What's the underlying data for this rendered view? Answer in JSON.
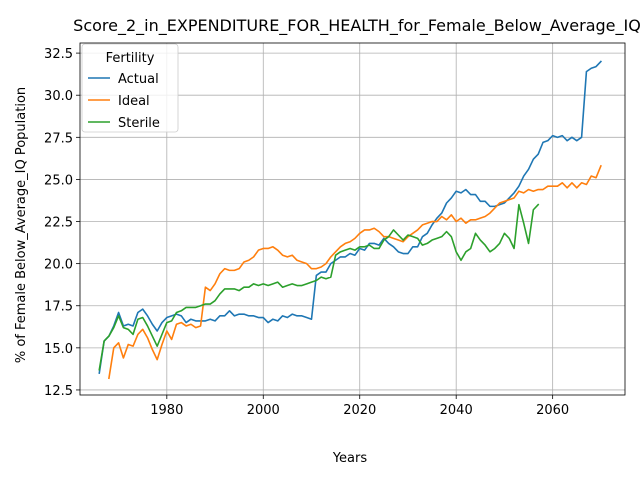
{
  "chart_data": {
    "type": "line",
    "title": "Score_2_in_EXPENDITURE_FOR_HEALTH_for_Female_Below_Average_IQ",
    "xlabel": "Years",
    "ylabel": "% of Female Below_Average_IQ Population",
    "xlim": [
      1962,
      2075
    ],
    "ylim": [
      12.2,
      33.1
    ],
    "xticks": [
      1980,
      2000,
      2020,
      2040,
      2060
    ],
    "yticks": [
      12.5,
      15.0,
      17.5,
      20.0,
      22.5,
      25.0,
      27.5,
      30.0,
      32.5
    ],
    "xtick_labels": [
      "1980",
      "2000",
      "2020",
      "2040",
      "2060"
    ],
    "ytick_labels": [
      "12.5",
      "15.0",
      "17.5",
      "20.0",
      "22.5",
      "25.0",
      "27.5",
      "30.0",
      "32.5"
    ],
    "grid": true,
    "legend": {
      "title": "Fertility",
      "placement": "top-left"
    },
    "series": [
      {
        "name": "Actual",
        "color": "#1f77b4",
        "points": [
          [
            1966,
            13.5
          ],
          [
            1967,
            15.4
          ],
          [
            1968,
            15.7
          ],
          [
            1969,
            16.3
          ],
          [
            1970,
            17.1
          ],
          [
            1971,
            16.3
          ],
          [
            1972,
            16.4
          ],
          [
            1973,
            16.3
          ],
          [
            1974,
            17.1
          ],
          [
            1975,
            17.3
          ],
          [
            1976,
            16.9
          ],
          [
            1977,
            16.4
          ],
          [
            1978,
            16.0
          ],
          [
            1979,
            16.5
          ],
          [
            1980,
            16.8
          ],
          [
            1981,
            16.9
          ],
          [
            1982,
            17.0
          ],
          [
            1983,
            16.9
          ],
          [
            1984,
            16.5
          ],
          [
            1985,
            16.7
          ],
          [
            1986,
            16.6
          ],
          [
            1987,
            16.6
          ],
          [
            1988,
            16.6
          ],
          [
            1989,
            16.7
          ],
          [
            1990,
            16.6
          ],
          [
            1991,
            16.9
          ],
          [
            1992,
            16.9
          ],
          [
            1993,
            17.2
          ],
          [
            1994,
            16.9
          ],
          [
            1995,
            17.0
          ],
          [
            1996,
            17.0
          ],
          [
            1997,
            16.9
          ],
          [
            1998,
            16.9
          ],
          [
            1999,
            16.8
          ],
          [
            2000,
            16.8
          ],
          [
            2001,
            16.5
          ],
          [
            2002,
            16.7
          ],
          [
            2003,
            16.6
          ],
          [
            2004,
            16.9
          ],
          [
            2005,
            16.8
          ],
          [
            2006,
            17.0
          ],
          [
            2007,
            16.9
          ],
          [
            2008,
            16.9
          ],
          [
            2009,
            16.8
          ],
          [
            2010,
            16.7
          ],
          [
            2011,
            19.3
          ],
          [
            2012,
            19.5
          ],
          [
            2013,
            19.5
          ],
          [
            2014,
            20.0
          ],
          [
            2015,
            20.2
          ],
          [
            2016,
            20.4
          ],
          [
            2017,
            20.4
          ],
          [
            2018,
            20.6
          ],
          [
            2019,
            20.5
          ],
          [
            2020,
            20.9
          ],
          [
            2021,
            20.8
          ],
          [
            2022,
            21.2
          ],
          [
            2023,
            21.2
          ],
          [
            2024,
            21.1
          ],
          [
            2025,
            21.5
          ],
          [
            2026,
            21.2
          ],
          [
            2027,
            21.0
          ],
          [
            2028,
            20.7
          ],
          [
            2029,
            20.6
          ],
          [
            2030,
            20.6
          ],
          [
            2031,
            21.0
          ],
          [
            2032,
            21.0
          ],
          [
            2033,
            21.6
          ],
          [
            2034,
            21.8
          ],
          [
            2035,
            22.3
          ],
          [
            2036,
            22.7
          ],
          [
            2037,
            23.0
          ],
          [
            2038,
            23.6
          ],
          [
            2039,
            23.9
          ],
          [
            2040,
            24.3
          ],
          [
            2041,
            24.2
          ],
          [
            2042,
            24.4
          ],
          [
            2043,
            24.1
          ],
          [
            2044,
            24.1
          ],
          [
            2045,
            23.7
          ],
          [
            2046,
            23.7
          ],
          [
            2047,
            23.4
          ],
          [
            2048,
            23.4
          ],
          [
            2049,
            23.5
          ],
          [
            2050,
            23.6
          ],
          [
            2051,
            23.9
          ],
          [
            2052,
            24.2
          ],
          [
            2053,
            24.6
          ],
          [
            2054,
            25.2
          ],
          [
            2055,
            25.6
          ],
          [
            2056,
            26.2
          ],
          [
            2057,
            26.5
          ],
          [
            2058,
            27.2
          ],
          [
            2059,
            27.3
          ],
          [
            2060,
            27.6
          ],
          [
            2061,
            27.5
          ],
          [
            2062,
            27.6
          ],
          [
            2063,
            27.3
          ],
          [
            2064,
            27.5
          ],
          [
            2065,
            27.3
          ],
          [
            2066,
            27.5
          ],
          [
            2067,
            31.4
          ],
          [
            2068,
            31.6
          ],
          [
            2069,
            31.7
          ],
          [
            2070,
            32.0
          ]
        ]
      },
      {
        "name": "Ideal",
        "color": "#ff7f0e",
        "points": [
          [
            1968,
            13.2
          ],
          [
            1969,
            15.0
          ],
          [
            1970,
            15.3
          ],
          [
            1971,
            14.4
          ],
          [
            1972,
            15.2
          ],
          [
            1973,
            15.1
          ],
          [
            1974,
            15.8
          ],
          [
            1975,
            16.1
          ],
          [
            1976,
            15.6
          ],
          [
            1977,
            14.9
          ],
          [
            1978,
            14.3
          ],
          [
            1979,
            15.2
          ],
          [
            1980,
            16.0
          ],
          [
            1981,
            15.5
          ],
          [
            1982,
            16.4
          ],
          [
            1983,
            16.5
          ],
          [
            1984,
            16.3
          ],
          [
            1985,
            16.4
          ],
          [
            1986,
            16.2
          ],
          [
            1987,
            16.3
          ],
          [
            1988,
            18.6
          ],
          [
            1989,
            18.4
          ],
          [
            1990,
            18.8
          ],
          [
            1991,
            19.4
          ],
          [
            1992,
            19.7
          ],
          [
            1993,
            19.6
          ],
          [
            1994,
            19.6
          ],
          [
            1995,
            19.7
          ],
          [
            1996,
            20.1
          ],
          [
            1997,
            20.2
          ],
          [
            1998,
            20.4
          ],
          [
            1999,
            20.8
          ],
          [
            2000,
            20.9
          ],
          [
            2001,
            20.9
          ],
          [
            2002,
            21.0
          ],
          [
            2003,
            20.8
          ],
          [
            2004,
            20.5
          ],
          [
            2005,
            20.4
          ],
          [
            2006,
            20.5
          ],
          [
            2007,
            20.2
          ],
          [
            2008,
            20.1
          ],
          [
            2009,
            20.0
          ],
          [
            2010,
            19.7
          ],
          [
            2011,
            19.7
          ],
          [
            2012,
            19.8
          ],
          [
            2013,
            20.0
          ],
          [
            2014,
            20.4
          ],
          [
            2015,
            20.7
          ],
          [
            2016,
            21.0
          ],
          [
            2017,
            21.2
          ],
          [
            2018,
            21.3
          ],
          [
            2019,
            21.5
          ],
          [
            2020,
            21.8
          ],
          [
            2021,
            22.0
          ],
          [
            2022,
            22.0
          ],
          [
            2023,
            22.1
          ],
          [
            2024,
            21.9
          ],
          [
            2025,
            21.6
          ],
          [
            2026,
            21.6
          ],
          [
            2027,
            21.5
          ],
          [
            2028,
            21.4
          ],
          [
            2029,
            21.3
          ],
          [
            2030,
            21.6
          ],
          [
            2031,
            21.8
          ],
          [
            2032,
            22.0
          ],
          [
            2033,
            22.3
          ],
          [
            2034,
            22.4
          ],
          [
            2035,
            22.5
          ],
          [
            2036,
            22.5
          ],
          [
            2037,
            22.8
          ],
          [
            2038,
            22.6
          ],
          [
            2039,
            22.9
          ],
          [
            2040,
            22.5
          ],
          [
            2041,
            22.7
          ],
          [
            2042,
            22.4
          ],
          [
            2043,
            22.6
          ],
          [
            2044,
            22.6
          ],
          [
            2045,
            22.7
          ],
          [
            2046,
            22.8
          ],
          [
            2047,
            23.0
          ],
          [
            2048,
            23.3
          ],
          [
            2049,
            23.6
          ],
          [
            2050,
            23.7
          ],
          [
            2051,
            23.8
          ],
          [
            2052,
            23.9
          ],
          [
            2053,
            24.3
          ],
          [
            2054,
            24.2
          ],
          [
            2055,
            24.4
          ],
          [
            2056,
            24.3
          ],
          [
            2057,
            24.4
          ],
          [
            2058,
            24.4
          ],
          [
            2059,
            24.6
          ],
          [
            2060,
            24.6
          ],
          [
            2061,
            24.6
          ],
          [
            2062,
            24.8
          ],
          [
            2063,
            24.5
          ],
          [
            2064,
            24.8
          ],
          [
            2065,
            24.5
          ],
          [
            2066,
            24.8
          ],
          [
            2067,
            24.7
          ],
          [
            2068,
            25.2
          ],
          [
            2069,
            25.1
          ],
          [
            2070,
            25.8
          ]
        ]
      },
      {
        "name": "Sterile",
        "color": "#2ca02c",
        "points": [
          [
            1966,
            13.7
          ],
          [
            1967,
            15.4
          ],
          [
            1968,
            15.7
          ],
          [
            1969,
            16.2
          ],
          [
            1970,
            16.9
          ],
          [
            1971,
            16.2
          ],
          [
            1972,
            16.1
          ],
          [
            1973,
            15.8
          ],
          [
            1974,
            16.7
          ],
          [
            1975,
            16.8
          ],
          [
            1976,
            16.3
          ],
          [
            1977,
            15.7
          ],
          [
            1978,
            15.1
          ],
          [
            1979,
            15.8
          ],
          [
            1980,
            16.5
          ],
          [
            1981,
            16.6
          ],
          [
            1982,
            17.1
          ],
          [
            1983,
            17.2
          ],
          [
            1984,
            17.4
          ],
          [
            1985,
            17.4
          ],
          [
            1986,
            17.4
          ],
          [
            1987,
            17.5
          ],
          [
            1988,
            17.6
          ],
          [
            1989,
            17.6
          ],
          [
            1990,
            17.8
          ],
          [
            1991,
            18.2
          ],
          [
            1992,
            18.5
          ],
          [
            1993,
            18.5
          ],
          [
            1994,
            18.5
          ],
          [
            1995,
            18.4
          ],
          [
            1996,
            18.6
          ],
          [
            1997,
            18.6
          ],
          [
            1998,
            18.8
          ],
          [
            1999,
            18.7
          ],
          [
            2000,
            18.8
          ],
          [
            2001,
            18.7
          ],
          [
            2002,
            18.8
          ],
          [
            2003,
            18.9
          ],
          [
            2004,
            18.6
          ],
          [
            2005,
            18.7
          ],
          [
            2006,
            18.8
          ],
          [
            2007,
            18.7
          ],
          [
            2008,
            18.7
          ],
          [
            2009,
            18.8
          ],
          [
            2010,
            18.9
          ],
          [
            2011,
            19.0
          ],
          [
            2012,
            19.2
          ],
          [
            2013,
            19.1
          ],
          [
            2014,
            19.2
          ],
          [
            2015,
            20.5
          ],
          [
            2016,
            20.7
          ],
          [
            2017,
            20.8
          ],
          [
            2018,
            20.9
          ],
          [
            2019,
            20.8
          ],
          [
            2020,
            21.0
          ],
          [
            2021,
            21.0
          ],
          [
            2022,
            21.1
          ],
          [
            2023,
            20.9
          ],
          [
            2024,
            20.9
          ],
          [
            2025,
            21.4
          ],
          [
            2026,
            21.6
          ],
          [
            2027,
            22.0
          ],
          [
            2028,
            21.7
          ],
          [
            2029,
            21.4
          ],
          [
            2030,
            21.7
          ],
          [
            2031,
            21.6
          ],
          [
            2032,
            21.5
          ],
          [
            2033,
            21.1
          ],
          [
            2034,
            21.2
          ],
          [
            2035,
            21.4
          ],
          [
            2036,
            21.5
          ],
          [
            2037,
            21.6
          ],
          [
            2038,
            21.9
          ],
          [
            2039,
            21.6
          ],
          [
            2040,
            20.7
          ],
          [
            2041,
            20.2
          ],
          [
            2042,
            20.7
          ],
          [
            2043,
            20.9
          ],
          [
            2044,
            21.8
          ],
          [
            2045,
            21.4
          ],
          [
            2046,
            21.1
          ],
          [
            2047,
            20.7
          ],
          [
            2048,
            20.9
          ],
          [
            2049,
            21.2
          ],
          [
            2050,
            21.8
          ],
          [
            2051,
            21.5
          ],
          [
            2052,
            20.9
          ],
          [
            2053,
            23.5
          ],
          [
            2054,
            22.4
          ],
          [
            2055,
            21.2
          ],
          [
            2056,
            23.2
          ],
          [
            2057,
            23.5
          ]
        ]
      }
    ]
  }
}
